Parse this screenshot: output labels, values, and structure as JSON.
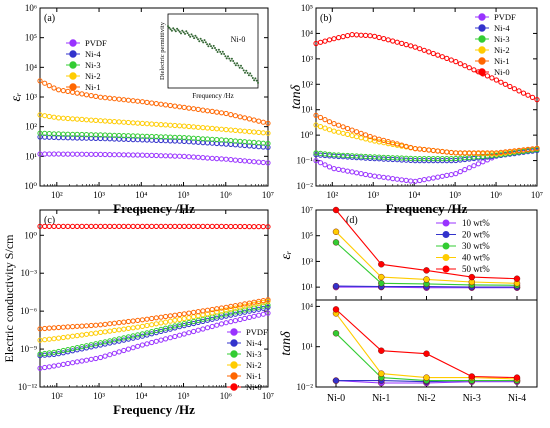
{
  "figure": {
    "background": "#ffffff"
  },
  "chart_data": [
    {
      "id": "a",
      "panel_label": "(a)",
      "type": "scatter",
      "xlabel": "Frequency /Hz",
      "ylabel": "εᵣ",
      "xscale": "log",
      "yscale": "log",
      "xlim": [
        40,
        10000000
      ],
      "ylim": [
        1,
        1000000
      ],
      "x_ticks": [
        "10²",
        "10³",
        "10⁴",
        "10⁵",
        "10⁶",
        "10⁷"
      ],
      "y_ticks": [
        "10⁰",
        "10¹",
        "10²",
        "10³",
        "10⁴",
        "10⁵",
        "10⁶"
      ],
      "legend_position": "upper-left",
      "series": [
        {
          "name": "PVDF",
          "color": "#9933ff",
          "x": [
            40,
            100,
            1000,
            10000,
            100000,
            1000000,
            10000000
          ],
          "y": [
            12,
            12,
            11.6,
            11,
            10,
            8,
            6
          ]
        },
        {
          "name": "Ni-4",
          "color": "#3333cc",
          "x": [
            40,
            100,
            1000,
            10000,
            100000,
            1000000,
            10000000
          ],
          "y": [
            45,
            43,
            40,
            36,
            32,
            26,
            20
          ]
        },
        {
          "name": "Ni-3",
          "color": "#33cc33",
          "x": [
            40,
            100,
            1000,
            10000,
            100000,
            1000000,
            10000000
          ],
          "y": [
            60,
            57,
            53,
            48,
            43,
            35,
            27
          ]
        },
        {
          "name": "Ni-2",
          "color": "#ffcc00",
          "x": [
            40,
            100,
            1000,
            10000,
            100000,
            1000000,
            10000000
          ],
          "y": [
            250,
            200,
            160,
            130,
            105,
            80,
            60
          ]
        },
        {
          "name": "Ni-1",
          "color": "#ff6600",
          "x": [
            40,
            100,
            1000,
            10000,
            100000,
            1000000,
            10000000
          ],
          "y": [
            3500,
            1800,
            1000,
            700,
            450,
            280,
            130
          ]
        }
      ],
      "inset": {
        "ylabel": "Dielectric permittivity",
        "xlabel": "Frequency /Hz",
        "label": "Ni-0",
        "color": "#336633",
        "x": [
          100,
          1000,
          10000,
          100000,
          1000000,
          10000000
        ],
        "y": [
          90000,
          60000,
          30000,
          12000,
          4000,
          1200
        ]
      }
    },
    {
      "id": "b",
      "panel_label": "(b)",
      "type": "scatter",
      "xlabel": "Frequency /Hz",
      "ylabel": "tanδ",
      "xscale": "log",
      "yscale": "log",
      "xlim": [
        40,
        10000000
      ],
      "ylim": [
        0.01,
        100000
      ],
      "x_ticks": [
        "10²",
        "10³",
        "10⁴",
        "10⁵",
        "10⁶",
        "10⁷"
      ],
      "y_ticks": [
        "10⁻²",
        "10⁻¹",
        "10⁰",
        "10¹",
        "10²",
        "10³",
        "10⁴",
        "10⁵"
      ],
      "legend_position": "upper-right",
      "series": [
        {
          "name": "PVDF",
          "color": "#9933ff",
          "x": [
            40,
            100,
            1000,
            10000,
            100000,
            1000000,
            10000000
          ],
          "y": [
            0.1,
            0.05,
            0.025,
            0.015,
            0.03,
            0.15,
            0.3
          ]
        },
        {
          "name": "Ni-4",
          "color": "#3333cc",
          "x": [
            40,
            100,
            1000,
            10000,
            100000,
            1000000,
            10000000
          ],
          "y": [
            0.17,
            0.15,
            0.12,
            0.1,
            0.1,
            0.15,
            0.25
          ]
        },
        {
          "name": "Ni-3",
          "color": "#33cc33",
          "x": [
            40,
            100,
            1000,
            10000,
            100000,
            1000000,
            10000000
          ],
          "y": [
            0.2,
            0.17,
            0.14,
            0.12,
            0.12,
            0.16,
            0.27
          ]
        },
        {
          "name": "Ni-2",
          "color": "#ffcc00",
          "x": [
            40,
            100,
            1000,
            10000,
            100000,
            1000000,
            10000000
          ],
          "y": [
            2.5,
            1.5,
            0.6,
            0.3,
            0.2,
            0.18,
            0.3
          ]
        },
        {
          "name": "Ni-1",
          "color": "#ff6600",
          "x": [
            40,
            100,
            1000,
            10000,
            100000,
            1000000,
            10000000
          ],
          "y": [
            6,
            3,
            0.8,
            0.3,
            0.2,
            0.2,
            0.3
          ]
        },
        {
          "name": "Ni-0",
          "color": "#ff0000",
          "x": [
            40,
            100,
            300,
            1000,
            10000,
            100000,
            1000000,
            10000000
          ],
          "y": [
            4000,
            6000,
            9000,
            8000,
            3000,
            800,
            150,
            25
          ]
        }
      ]
    },
    {
      "id": "c",
      "panel_label": "(c)",
      "type": "scatter",
      "xlabel": "Frequency /Hz",
      "ylabel": "Electric conductivity S/cm",
      "xscale": "log",
      "yscale": "log",
      "xlim": [
        40,
        10000000
      ],
      "ylim": [
        1e-12,
        100
      ],
      "x_ticks": [
        "10²",
        "10³",
        "10⁴",
        "10⁵",
        "10⁶",
        "10⁷"
      ],
      "y_ticks": [
        "10⁻¹²",
        "10⁻⁹",
        "10⁻⁶",
        "10⁻³",
        "10⁰"
      ],
      "legend_position": "lower-right",
      "series": [
        {
          "name": "PVDF",
          "color": "#9933ff",
          "x": [
            40,
            100,
            1000,
            10000,
            100000,
            1000000,
            10000000
          ],
          "y": [
            3e-11,
            5e-11,
            2e-10,
            2e-09,
            1.5e-08,
            1.2e-07,
            7e-07
          ]
        },
        {
          "name": "Ni-4",
          "color": "#3333cc",
          "x": [
            40,
            100,
            1000,
            10000,
            100000,
            1000000,
            10000000
          ],
          "y": [
            3e-10,
            4e-10,
            2e-09,
            1e-08,
            7e-08,
            4e-07,
            2e-06
          ]
        },
        {
          "name": "Ni-3",
          "color": "#33cc33",
          "x": [
            40,
            100,
            1000,
            10000,
            100000,
            1000000,
            10000000
          ],
          "y": [
            4e-10,
            6e-10,
            3e-09,
            1.5e-08,
            1e-07,
            6e-07,
            3e-06
          ]
        },
        {
          "name": "Ni-2",
          "color": "#ffcc00",
          "x": [
            40,
            100,
            1000,
            10000,
            100000,
            1000000,
            10000000
          ],
          "y": [
            5e-09,
            7e-09,
            2e-08,
            6e-08,
            2.5e-07,
            1.2e-06,
            6e-06
          ]
        },
        {
          "name": "Ni-1",
          "color": "#ff6600",
          "x": [
            40,
            100,
            1000,
            10000,
            100000,
            1000000,
            10000000
          ],
          "y": [
            4e-08,
            5e-08,
            8e-08,
            2e-07,
            6e-07,
            2e-06,
            8e-06
          ]
        },
        {
          "name": "Ni-0",
          "color": "#ff0000",
          "x": [
            40,
            100,
            1000,
            10000,
            100000,
            1000000,
            10000000
          ],
          "y": [
            5,
            5,
            5,
            5,
            5,
            5,
            4.8
          ]
        }
      ]
    },
    {
      "id": "d-top",
      "panel_label": "(d)",
      "type": "line",
      "ylabel": "εᵣ",
      "yscale": "log",
      "ylim": [
        1,
        10000000
      ],
      "categories": [
        "Ni-0",
        "Ni-1",
        "Ni-2",
        "Ni-3",
        "Ni-4"
      ],
      "y_ticks": [
        "10¹",
        "10³",
        "10⁵",
        "10⁷"
      ],
      "legend_position": "upper-right",
      "series": [
        {
          "name": "10 wt%",
          "color": "#9933ff",
          "values": [
            10,
            10,
            9,
            9,
            9
          ]
        },
        {
          "name": "20 wt%",
          "color": "#3333cc",
          "values": [
            12,
            11,
            11,
            10,
            10
          ]
        },
        {
          "name": "30 wt%",
          "color": "#33cc33",
          "values": [
            30000,
            20,
            18,
            15,
            14
          ]
        },
        {
          "name": "40 wt%",
          "color": "#ffcc00",
          "values": [
            200000,
            60,
            40,
            25,
            20
          ]
        },
        {
          "name": "50 wt%",
          "color": "#ff0000",
          "values": [
            10000000,
            600,
            200,
            60,
            45
          ]
        }
      ]
    },
    {
      "id": "d-bottom",
      "type": "line",
      "xlabel": "",
      "ylabel": "tanδ",
      "yscale": "log",
      "ylim": [
        0.01,
        30000
      ],
      "categories": [
        "Ni-0",
        "Ni-1",
        "Ni-2",
        "Ni-3",
        "Ni-4"
      ],
      "y_ticks": [
        "10⁻²",
        "10¹",
        "10⁴"
      ],
      "series": [
        {
          "name": "10 wt%",
          "color": "#9933ff",
          "values": [
            0.03,
            0.02,
            0.02,
            0.025,
            0.025
          ]
        },
        {
          "name": "20 wt%",
          "color": "#3333cc",
          "values": [
            0.03,
            0.03,
            0.025,
            0.03,
            0.03
          ]
        },
        {
          "name": "30 wt%",
          "color": "#33cc33",
          "values": [
            100,
            0.05,
            0.03,
            0.03,
            0.03
          ]
        },
        {
          "name": "40 wt%",
          "color": "#ffcc00",
          "values": [
            3000,
            0.1,
            0.05,
            0.05,
            0.04
          ]
        },
        {
          "name": "50 wt%",
          "color": "#ff0000",
          "values": [
            6000,
            5,
            3,
            0.06,
            0.05
          ]
        }
      ]
    }
  ]
}
